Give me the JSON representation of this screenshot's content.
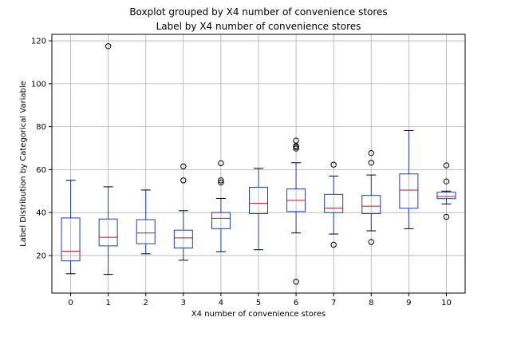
{
  "chart_data": {
    "type": "box",
    "suptitle": "Boxplot grouped by X4 number of convenience stores",
    "title": "Label by X4 number of convenience stores",
    "xlabel": "X4 number of convenience stores",
    "ylabel": "Label Distribution by Categorical Variable",
    "categories": [
      "0",
      "1",
      "2",
      "3",
      "4",
      "5",
      "6",
      "7",
      "8",
      "9",
      "10"
    ],
    "ylim": [
      2.5,
      123
    ],
    "yticks": [
      20,
      40,
      60,
      80,
      100,
      120
    ],
    "grid": true,
    "colors": {
      "box": "#1f3fb4",
      "median": "#c0142a",
      "whisker": "#1f3fb4",
      "cap": "#000000",
      "outlier": "#000000",
      "grid": "#b0b0b0"
    },
    "boxes": [
      {
        "category": "0",
        "whislo": 11.5,
        "q1": 17.5,
        "med": 22.0,
        "q3": 37.5,
        "whishi": 55.0,
        "fliers": []
      },
      {
        "category": "1",
        "whislo": 11.2,
        "q1": 24.5,
        "med": 28.5,
        "q3": 37.0,
        "whishi": 52.0,
        "fliers": [
          117.5
        ]
      },
      {
        "category": "2",
        "whislo": 20.8,
        "q1": 25.5,
        "med": 30.5,
        "q3": 36.7,
        "whishi": 50.5,
        "fliers": []
      },
      {
        "category": "3",
        "whislo": 17.8,
        "q1": 23.5,
        "med": 28.2,
        "q3": 31.8,
        "whishi": 40.9,
        "fliers": [
          61.5,
          55.0
        ]
      },
      {
        "category": "4",
        "whislo": 21.8,
        "q1": 32.5,
        "med": 37.3,
        "q3": 40.0,
        "whishi": 46.6,
        "fliers": [
          63.0,
          55.0,
          54.0
        ]
      },
      {
        "category": "5",
        "whislo": 22.7,
        "q1": 39.5,
        "med": 44.3,
        "q3": 51.8,
        "whishi": 60.6,
        "fliers": []
      },
      {
        "category": "6",
        "whislo": 30.5,
        "q1": 40.5,
        "med": 45.7,
        "q3": 51.0,
        "whishi": 63.2,
        "fliers": [
          73.5,
          71.0,
          70.5,
          69.8,
          7.8
        ]
      },
      {
        "category": "7",
        "whislo": 30.0,
        "q1": 40.0,
        "med": 42.0,
        "q3": 48.5,
        "whishi": 57.0,
        "fliers": [
          62.3,
          25.0
        ]
      },
      {
        "category": "8",
        "whislo": 31.5,
        "q1": 39.5,
        "med": 43.0,
        "q3": 48.0,
        "whishi": 57.5,
        "fliers": [
          67.7,
          63.2,
          26.3
        ]
      },
      {
        "category": "9",
        "whislo": 32.5,
        "q1": 42.0,
        "med": 50.5,
        "q3": 58.0,
        "whishi": 78.2,
        "fliers": []
      },
      {
        "category": "10",
        "whislo": 44.0,
        "q1": 46.5,
        "med": 47.5,
        "q3": 49.5,
        "whishi": 50.0,
        "fliers": [
          62.0,
          54.5,
          38.0
        ]
      }
    ]
  }
}
